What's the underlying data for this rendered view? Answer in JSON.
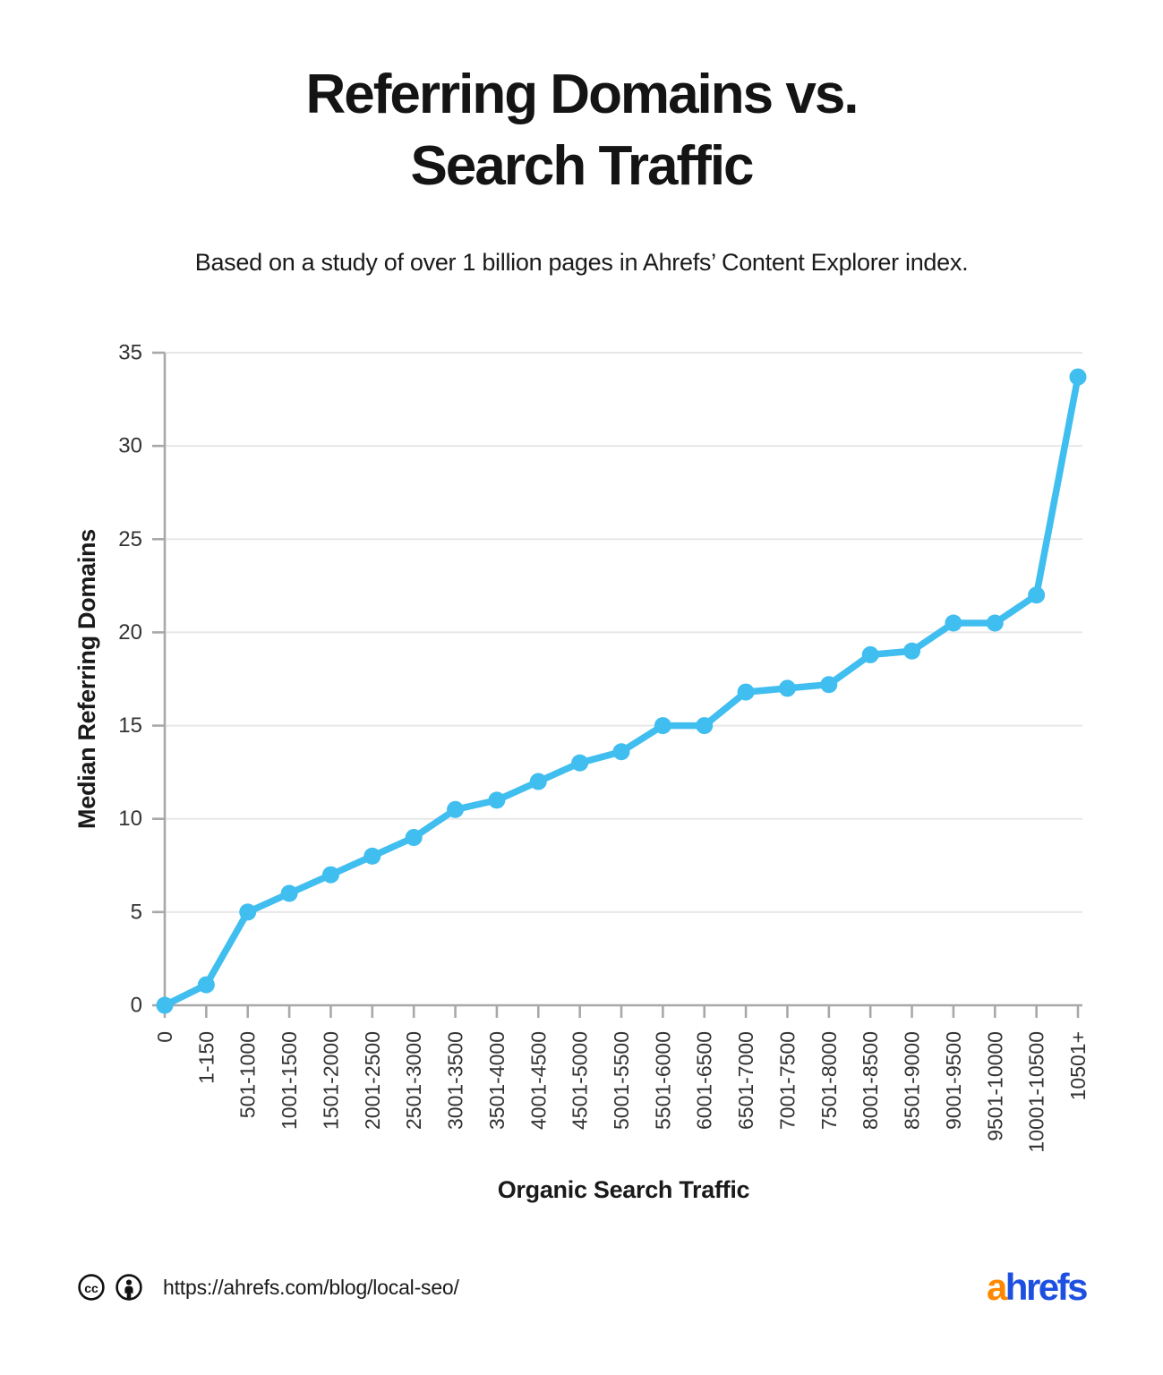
{
  "title": {
    "lines": [
      "Referring Domains vs.",
      "Search Traffic"
    ]
  },
  "subtitle": "Based on a study of over 1 billion pages in Ahrefs’ Content Explorer index.",
  "footer": {
    "license_icons": [
      "cc-icon",
      "attribution-icon"
    ],
    "url": "https://ahrefs.com/blog/local-seo/",
    "logo": {
      "prefix": "a",
      "rest": "hrefs",
      "prefix_color": "#FF8800",
      "rest_color": "#1D50E0"
    }
  },
  "chart_data": {
    "type": "line",
    "title": "Referring Domains vs. Search Traffic",
    "xlabel": "Organic Search Traffic",
    "ylabel": "Median Referring Domains",
    "categories": [
      "0",
      "1-150",
      "501-1000",
      "1001-1500",
      "1501-2000",
      "2001-2500",
      "2501-3000",
      "3001-3500",
      "3501-4000",
      "4001-4500",
      "4501-5000",
      "5001-5500",
      "5501-6000",
      "6001-6500",
      "6501-7000",
      "7001-7500",
      "7501-8000",
      "8001-8500",
      "8501-9000",
      "9001-9500",
      "9501-10000",
      "10001-10500",
      "10501+"
    ],
    "series": [
      {
        "name": "Median referring domains",
        "values": [
          0,
          1.1,
          5,
          6,
          7,
          8,
          9,
          10.5,
          11,
          12,
          13,
          13.6,
          15,
          15,
          16.8,
          17,
          17.2,
          18.8,
          19,
          20.5,
          20.5,
          22,
          33.7
        ]
      }
    ],
    "ylim": [
      0,
      35
    ],
    "ytick_step": 5,
    "grid": "horizontal",
    "legend": "none",
    "colors": {
      "line": "#40BEEF",
      "grid": "#E7E7E7",
      "axis": "#A8A8A8",
      "tick_text": "#333333",
      "label_text": "#1A1A1A"
    }
  }
}
